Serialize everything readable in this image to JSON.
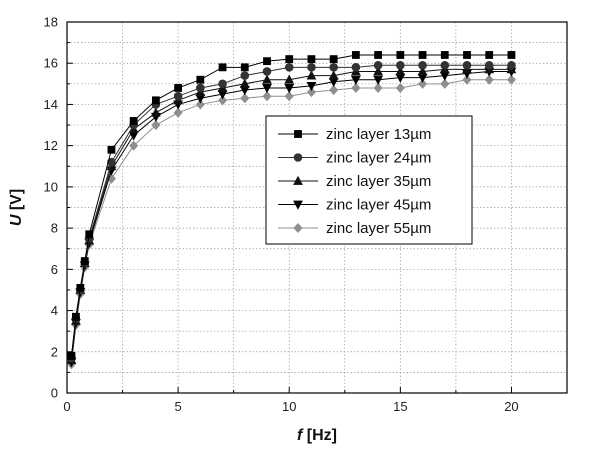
{
  "chart_data": {
    "type": "line",
    "xlabel": {
      "symbol": "f",
      "unit": " [Hz]"
    },
    "ylabel": {
      "symbol": "U",
      "unit": " [V]"
    },
    "xlim": [
      0,
      22.5
    ],
    "ylim": [
      0,
      18
    ],
    "xticks": [
      0,
      5,
      10,
      15,
      20
    ],
    "yticks": [
      0,
      2,
      4,
      6,
      8,
      10,
      12,
      14,
      16,
      18
    ],
    "grid": true,
    "legend_position": "center-right",
    "x": [
      0.2,
      0.4,
      0.6,
      0.8,
      1,
      2,
      3,
      4,
      5,
      6,
      7,
      8,
      9,
      10,
      11,
      12,
      13,
      14,
      15,
      16,
      17,
      18,
      19,
      20
    ],
    "series": [
      {
        "name": "zinc layer  13µm",
        "marker": "square",
        "color": "#000000",
        "values": [
          1.8,
          3.7,
          5.1,
          6.4,
          7.7,
          11.8,
          13.2,
          14.2,
          14.8,
          15.2,
          15.8,
          15.8,
          16.1,
          16.2,
          16.2,
          16.2,
          16.4,
          16.4,
          16.4,
          16.4,
          16.4,
          16.4,
          16.4,
          16.4
        ]
      },
      {
        "name": "zinc layer  24µm",
        "marker": "circle",
        "color": "#333333",
        "values": [
          1.7,
          3.6,
          5.0,
          6.3,
          7.5,
          11.2,
          13.0,
          14.0,
          14.4,
          14.8,
          15.0,
          15.4,
          15.6,
          15.8,
          15.8,
          15.8,
          15.8,
          15.9,
          15.9,
          15.9,
          15.9,
          15.9,
          15.9,
          15.9
        ]
      },
      {
        "name": "zinc layer  35µm",
        "marker": "triangle-up",
        "color": "#111111",
        "values": [
          1.6,
          3.5,
          5.0,
          6.3,
          7.4,
          11.0,
          12.8,
          13.6,
          14.2,
          14.6,
          14.8,
          15.0,
          15.2,
          15.2,
          15.4,
          15.4,
          15.6,
          15.6,
          15.6,
          15.6,
          15.7,
          15.7,
          15.7,
          15.7
        ]
      },
      {
        "name": "zinc layer  45µm",
        "marker": "triangle-down",
        "color": "#000000",
        "values": [
          1.5,
          3.4,
          4.9,
          6.2,
          7.3,
          10.8,
          12.5,
          13.4,
          14.0,
          14.3,
          14.5,
          14.7,
          14.8,
          14.8,
          14.9,
          15.1,
          15.2,
          15.2,
          15.3,
          15.3,
          15.4,
          15.5,
          15.6,
          15.6
        ]
      },
      {
        "name": "zinc layer 55µm",
        "marker": "diamond",
        "color": "#8f8f8f",
        "values": [
          1.4,
          3.3,
          4.8,
          6.1,
          7.2,
          10.4,
          12.0,
          13.0,
          13.6,
          14.0,
          14.2,
          14.3,
          14.4,
          14.4,
          14.6,
          14.7,
          14.8,
          14.8,
          14.8,
          15.0,
          15.0,
          15.2,
          15.2,
          15.2
        ]
      }
    ]
  }
}
